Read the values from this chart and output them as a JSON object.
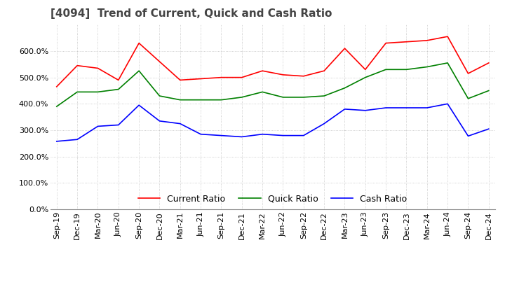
{
  "title": "[4094]  Trend of Current, Quick and Cash Ratio",
  "x_labels": [
    "Sep-19",
    "Dec-19",
    "Mar-20",
    "Jun-20",
    "Sep-20",
    "Dec-20",
    "Mar-21",
    "Jun-21",
    "Sep-21",
    "Dec-21",
    "Mar-22",
    "Jun-22",
    "Sep-22",
    "Dec-22",
    "Mar-23",
    "Jun-23",
    "Sep-23",
    "Dec-23",
    "Mar-24",
    "Jun-24",
    "Sep-24",
    "Dec-24"
  ],
  "current_ratio": [
    465,
    545,
    535,
    490,
    630,
    560,
    490,
    495,
    500,
    500,
    525,
    510,
    505,
    525,
    610,
    530,
    630,
    635,
    640,
    655,
    515,
    555
  ],
  "quick_ratio": [
    390,
    445,
    445,
    455,
    525,
    430,
    415,
    415,
    415,
    425,
    445,
    425,
    425,
    430,
    460,
    500,
    530,
    530,
    540,
    555,
    420,
    450
  ],
  "cash_ratio": [
    258,
    265,
    315,
    320,
    395,
    335,
    325,
    285,
    280,
    275,
    285,
    280,
    280,
    325,
    380,
    375,
    385,
    385,
    385,
    400,
    278,
    305
  ],
  "ylim": [
    0,
    700
  ],
  "yticks": [
    0,
    100,
    200,
    300,
    400,
    500,
    600
  ],
  "current_color": "#ff0000",
  "quick_color": "#008000",
  "cash_color": "#0000ff",
  "bg_color": "#ffffff",
  "grid_color": "#c0c0c0",
  "title_fontsize": 11,
  "label_fontsize": 8,
  "legend_fontsize": 9
}
